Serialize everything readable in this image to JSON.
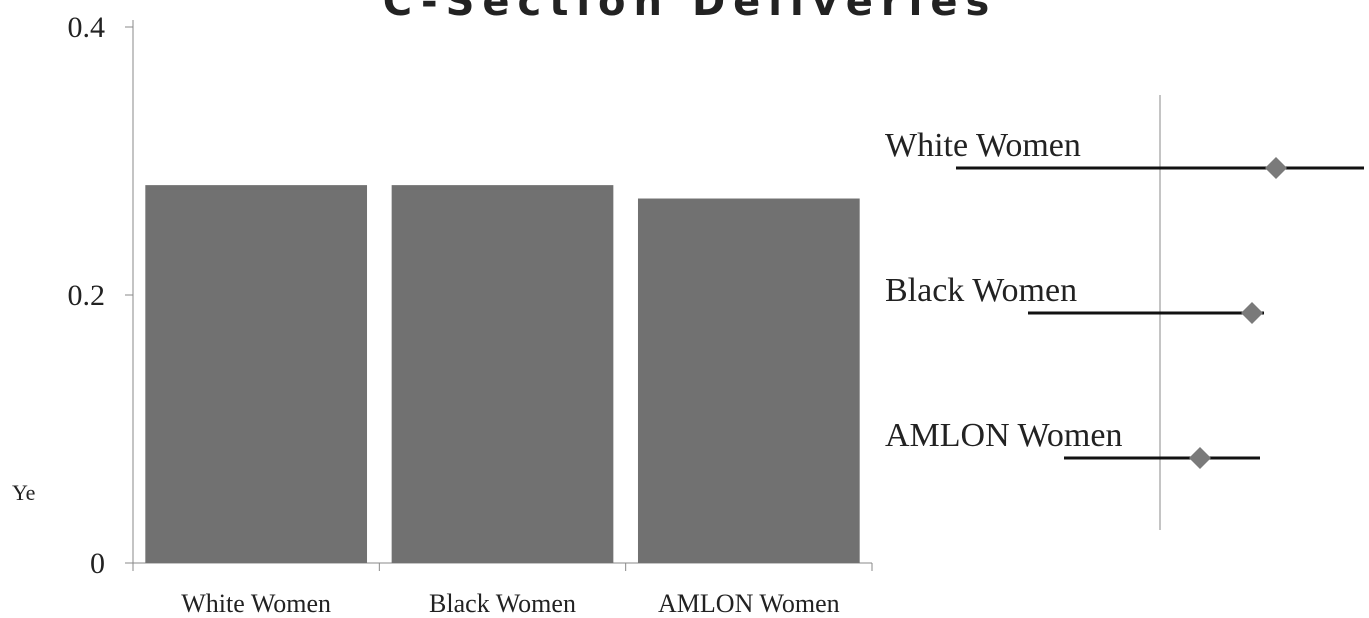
{
  "chart_data": [
    {
      "type": "bar",
      "title": "C-Section Deliveries",
      "annotation": "Ye",
      "categories": [
        "White Women",
        "Black Women",
        "AMLON Women"
      ],
      "values": [
        0.282,
        0.282,
        0.272
      ],
      "color": "#717171",
      "ylim": [
        0,
        0.4
      ],
      "yticks": [
        0,
        0.2,
        0.4
      ]
    },
    {
      "type": "forest",
      "categories": [
        "White Women",
        "Black Women",
        "AMLON Women"
      ],
      "values": [
        1.29,
        1.23,
        1.1
      ],
      "lower": [
        0.49,
        0.67,
        0.76
      ],
      "upper": [
        1.51,
        1.26,
        1.25
      ],
      "color": "#7a7a7a",
      "reference": 1,
      "xlim": [
        0.3,
        1.52
      ]
    }
  ]
}
